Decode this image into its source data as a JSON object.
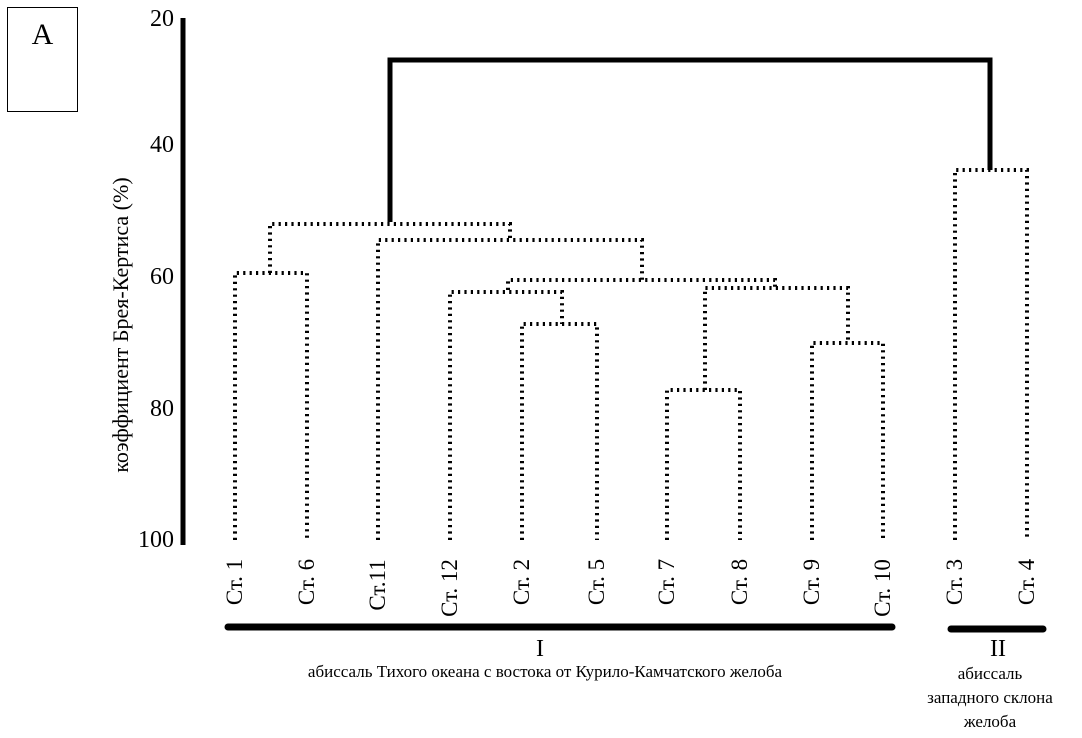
{
  "panel_label": "A",
  "axis": {
    "title": "коэффициент Брея-Кертиса (%)",
    "ticks": [
      "20",
      "40",
      "60",
      "80",
      "100"
    ]
  },
  "leaves": [
    "Ст. 1",
    "Ст. 6",
    "Ст.11",
    "Ст. 12",
    "Ст. 2",
    "Ст. 5",
    "Ст. 7",
    "Ст. 8",
    "Ст. 9",
    "Ст. 10",
    "Ст. 3",
    "Ст. 4"
  ],
  "groups": [
    {
      "numeral": "I",
      "description": "абиссаль Тихого океана с востока от Курило-Камчатского желоба"
    },
    {
      "numeral": "II",
      "description_lines": [
        "абиссаль",
        "западного склона",
        "желоба"
      ]
    }
  ],
  "colors": {
    "ink": "#000000",
    "background": "#ffffff"
  }
}
